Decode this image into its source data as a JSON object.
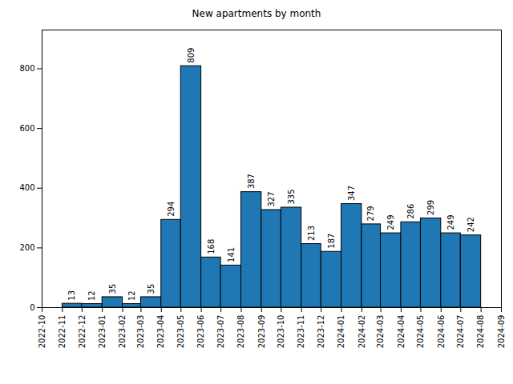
{
  "chart_data": {
    "type": "histogram",
    "title": "New apartments by month",
    "bins": [
      "2022-11",
      "2022-12",
      "2023-01",
      "2023-02",
      "2023-03",
      "2023-04",
      "2023-05",
      "2023-06",
      "2023-07",
      "2023-08",
      "2023-09",
      "2023-10",
      "2023-11",
      "2023-12",
      "2024-01",
      "2024-02",
      "2024-03",
      "2024-04",
      "2024-05",
      "2024-06",
      "2024-07",
      "2024-08"
    ],
    "values": [
      13,
      12,
      35,
      12,
      35,
      294,
      809,
      168,
      141,
      387,
      327,
      335,
      213,
      187,
      347,
      279,
      249,
      286,
      299,
      249,
      242
    ],
    "color": "#1f77b4",
    "xlim": [
      "2022-10",
      "2024-09"
    ],
    "xticks": [
      "2022-10",
      "2022-11",
      "2022-12",
      "2023-01",
      "2023-02",
      "2023-03",
      "2023-04",
      "2023-05",
      "2023-06",
      "2023-07",
      "2023-08",
      "2023-09",
      "2023-10",
      "2023-11",
      "2023-12",
      "2024-01",
      "2024-02",
      "2024-03",
      "2024-04",
      "2024-05",
      "2024-06",
      "2024-07",
      "2024-08",
      "2024-09"
    ],
    "ylim": [
      0,
      930
    ],
    "yticks": [
      0,
      200,
      400,
      600,
      800
    ],
    "grid": false,
    "data_labels": true
  }
}
